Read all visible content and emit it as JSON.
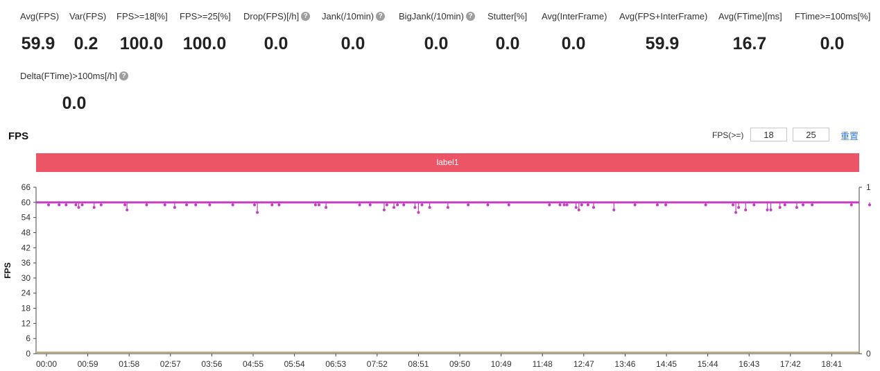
{
  "metrics": [
    {
      "label": "Avg(FPS)",
      "value": "59.9",
      "help": false
    },
    {
      "label": "Var(FPS)",
      "value": "0.2",
      "help": false
    },
    {
      "label": "FPS>=18[%]",
      "value": "100.0",
      "help": false
    },
    {
      "label": "FPS>=25[%]",
      "value": "100.0",
      "help": false
    },
    {
      "label": "Drop(FPS)[/h]",
      "value": "0.0",
      "help": true
    },
    {
      "label": "Jank(/10min)",
      "value": "0.0",
      "help": true
    },
    {
      "label": "BigJank(/10min)",
      "value": "0.0",
      "help": true
    },
    {
      "label": "Stutter[%]",
      "value": "0.0",
      "help": false
    },
    {
      "label": "Avg(InterFrame)",
      "value": "0.0",
      "help": false
    },
    {
      "label": "Avg(FPS+InterFrame)",
      "value": "59.9",
      "help": false
    },
    {
      "label": "Avg(FTime)[ms]",
      "value": "16.7",
      "help": false
    },
    {
      "label": "FTime>=100ms[%]",
      "value": "0.0",
      "help": false
    },
    {
      "label": "Delta(FTime)>100ms[/h]",
      "value": "0.0",
      "help": true
    }
  ],
  "help_glyph": "?",
  "section_title": "FPS",
  "threshold": {
    "label": "FPS(>=)",
    "low": "18",
    "high": "25",
    "reset_label": "重置"
  },
  "label_bar": "label1",
  "colors": {
    "fps_series": "#c23fc2",
    "baseline_series": "#c8a878",
    "label_bar": "#ec5565",
    "axis": "#333333",
    "grid": "#e6e6e6"
  },
  "chart_data": {
    "type": "line",
    "ylabel": "FPS",
    "y_ticks": [
      "0",
      "6",
      "12",
      "18",
      "24",
      "30",
      "36",
      "42",
      "48",
      "54",
      "60",
      "66"
    ],
    "ylim": [
      0,
      66
    ],
    "y2_ticks": [
      "0",
      "1"
    ],
    "x_ticks": [
      "00:00",
      "00:59",
      "01:58",
      "02:57",
      "03:56",
      "04:55",
      "05:54",
      "06:53",
      "07:52",
      "08:51",
      "09:50",
      "10:49",
      "11:48",
      "12:47",
      "13:46",
      "14:45",
      "15:44",
      "16:43",
      "17:42",
      "18:41"
    ],
    "xlim_seconds": [
      0,
      1175
    ],
    "grid": false,
    "series": [
      {
        "baseline": 60,
        "dips": [
          {
            "t": 5,
            "fps": 59
          },
          {
            "t": 20,
            "fps": 59
          },
          {
            "t": 30,
            "fps": 59
          },
          {
            "t": 44,
            "fps": 59
          },
          {
            "t": 48,
            "fps": 58
          },
          {
            "t": 53,
            "fps": 59
          },
          {
            "t": 70,
            "fps": 58
          },
          {
            "t": 80,
            "fps": 59
          },
          {
            "t": 114,
            "fps": 59
          },
          {
            "t": 117,
            "fps": 57
          },
          {
            "t": 145,
            "fps": 59
          },
          {
            "t": 171,
            "fps": 59
          },
          {
            "t": 185,
            "fps": 58
          },
          {
            "t": 202,
            "fps": 59
          },
          {
            "t": 215,
            "fps": 59
          },
          {
            "t": 235,
            "fps": 59
          },
          {
            "t": 268,
            "fps": 59
          },
          {
            "t": 299,
            "fps": 59
          },
          {
            "t": 303,
            "fps": 56
          },
          {
            "t": 324,
            "fps": 59
          },
          {
            "t": 334,
            "fps": 59
          },
          {
            "t": 386,
            "fps": 59
          },
          {
            "t": 391,
            "fps": 59
          },
          {
            "t": 401,
            "fps": 58
          },
          {
            "t": 449,
            "fps": 59
          },
          {
            "t": 464,
            "fps": 59
          },
          {
            "t": 484,
            "fps": 57
          },
          {
            "t": 488,
            "fps": 59
          },
          {
            "t": 498,
            "fps": 58
          },
          {
            "t": 503,
            "fps": 59
          },
          {
            "t": 512,
            "fps": 59
          },
          {
            "t": 528,
            "fps": 58
          },
          {
            "t": 533,
            "fps": 56
          },
          {
            "t": 538,
            "fps": 59
          },
          {
            "t": 549,
            "fps": 58
          },
          {
            "t": 575,
            "fps": 58
          },
          {
            "t": 604,
            "fps": 59
          },
          {
            "t": 632,
            "fps": 59
          },
          {
            "t": 662,
            "fps": 59
          },
          {
            "t": 720,
            "fps": 59
          },
          {
            "t": 735,
            "fps": 59
          },
          {
            "t": 741,
            "fps": 59
          },
          {
            "t": 745,
            "fps": 59
          },
          {
            "t": 758,
            "fps": 58
          },
          {
            "t": 762,
            "fps": 57
          },
          {
            "t": 766,
            "fps": 59
          },
          {
            "t": 775,
            "fps": 59
          },
          {
            "t": 783,
            "fps": 58
          },
          {
            "t": 812,
            "fps": 57
          },
          {
            "t": 842,
            "fps": 59
          },
          {
            "t": 874,
            "fps": 59
          },
          {
            "t": 886,
            "fps": 59
          },
          {
            "t": 943,
            "fps": 59
          },
          {
            "t": 982,
            "fps": 59
          },
          {
            "t": 986,
            "fps": 56
          },
          {
            "t": 990,
            "fps": 58
          },
          {
            "t": 1000,
            "fps": 57
          },
          {
            "t": 1012,
            "fps": 59
          },
          {
            "t": 1031,
            "fps": 57
          },
          {
            "t": 1036,
            "fps": 57
          },
          {
            "t": 1049,
            "fps": 58
          },
          {
            "t": 1056,
            "fps": 59
          },
          {
            "t": 1073,
            "fps": 58
          },
          {
            "t": 1082,
            "fps": 59
          },
          {
            "t": 1095,
            "fps": 59
          },
          {
            "t": 1151,
            "fps": 59
          },
          {
            "t": 1177,
            "fps": 59
          }
        ]
      },
      {
        "constant": 0
      }
    ]
  }
}
